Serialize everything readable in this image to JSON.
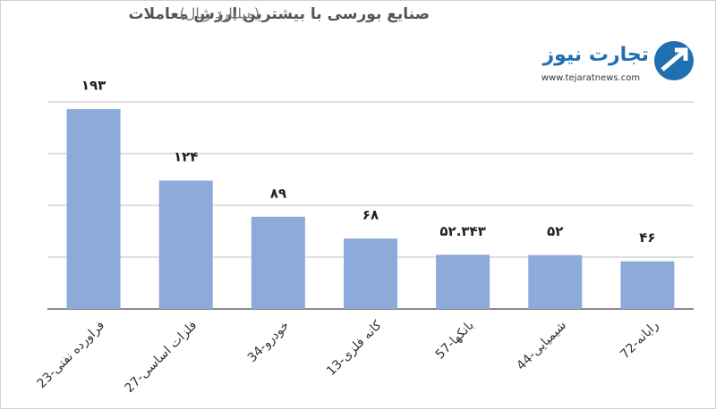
{
  "chart_data": {
    "type": "bar",
    "title": "صنایع بورسی با بیشترین ارزش معاملات",
    "subtitle": "(میلیارد ریال)",
    "categories": [
      "23-فراورده نفتی",
      "27-فلزات اساسی",
      "34-خودرو",
      "13-کانه فلزی",
      "57-بانکها",
      "44-شیمیایی",
      "72-رایانه"
    ],
    "values": [
      193,
      124,
      89,
      68,
      52.343,
      52,
      46
    ],
    "value_labels": [
      "۱۹۳",
      "۱۲۴",
      "۸۹",
      "۶۸",
      "۵۲.۳۴۳",
      "۵۲",
      "۴۶"
    ],
    "color": "#8eaadb",
    "ylim": [
      0,
      200
    ],
    "yticks": [
      0,
      50,
      100,
      150,
      200
    ],
    "grid": true
  },
  "logo": {
    "name": "تجارت نیوز",
    "url": "www.tejaratnews.com"
  }
}
